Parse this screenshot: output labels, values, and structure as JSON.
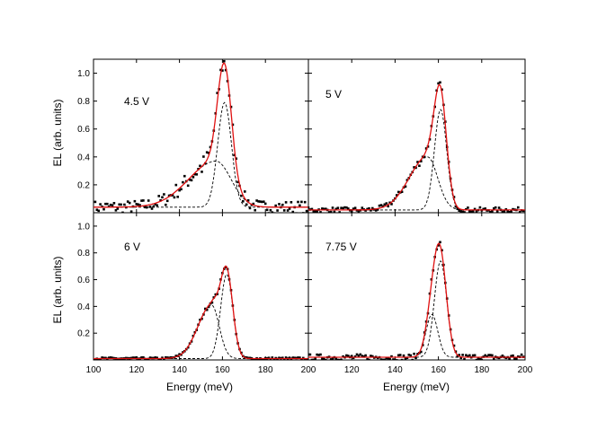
{
  "chart_data": {
    "type": "scatter",
    "layout": "2x2 panel grid with shared axes",
    "xlabel": "Energy (meV)",
    "ylabel": "EL (arb. units)",
    "xlim": [
      100,
      200
    ],
    "ylim": [
      0,
      1.1
    ],
    "xticks": [
      100,
      120,
      140,
      160,
      180,
      200
    ],
    "yticks": [
      0.2,
      0.4,
      0.6,
      0.8,
      1.0
    ],
    "xtick_labels": [
      "100",
      "120",
      "140",
      "160",
      "180",
      "200"
    ],
    "ytick_labels": [
      "0.2",
      "0.4",
      "0.6",
      "0.8",
      "1.0"
    ],
    "colors": {
      "data": "#000000",
      "fit": "#e01010",
      "components": "#000000",
      "frame": "#000000"
    },
    "panels": [
      {
        "label": "4.5 V",
        "noise": 0.03,
        "offset": 0.04,
        "component1": {
          "center": 157,
          "amplitude": 0.33,
          "width": 18,
          "shape": "asymmetric"
        },
        "component2": {
          "center": 161,
          "amplitude": 0.75,
          "width": 4.5
        },
        "show_x_labels": false,
        "show_y_labels": true
      },
      {
        "label": "5 V",
        "noise": 0.012,
        "offset": 0.02,
        "component1": {
          "center": 155,
          "amplitude": 0.38,
          "width": 12,
          "shape": "asymmetric"
        },
        "component2": {
          "center": 161,
          "amplitude": 0.72,
          "width": 4
        },
        "show_x_labels": false,
        "show_y_labels": false
      },
      {
        "label": "6 V",
        "noise": 0.006,
        "offset": 0.01,
        "component1": {
          "center": 155,
          "amplitude": 0.4,
          "width": 9,
          "shape": "asymmetric"
        },
        "component2": {
          "center": 162,
          "amplitude": 0.63,
          "width": 4
        },
        "show_x_labels": true,
        "show_y_labels": true
      },
      {
        "label": "7.75 V",
        "noise": 0.015,
        "offset": 0.02,
        "component1": {
          "center": 157,
          "amplitude": 0.32,
          "width": 7,
          "shape": "symmetric"
        },
        "component2": {
          "center": 161,
          "amplitude": 0.72,
          "width": 4
        },
        "show_x_labels": true,
        "show_y_labels": false
      }
    ]
  }
}
